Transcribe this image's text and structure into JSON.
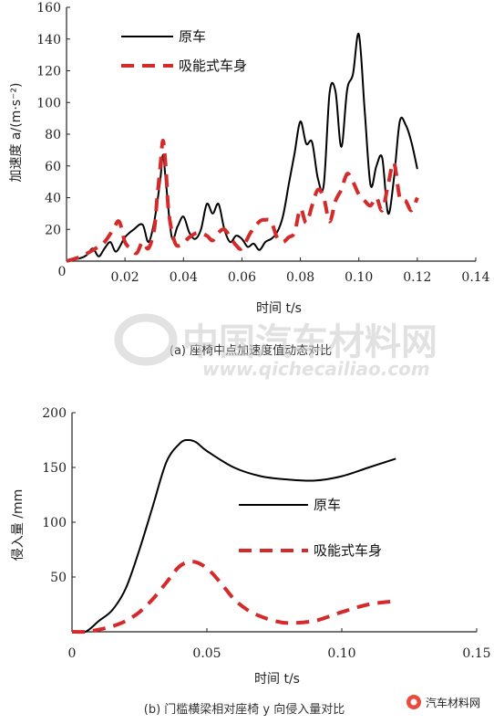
{
  "chart_data": [
    {
      "type": "line",
      "caption": "(a) 座椅中点加速度值动态对比",
      "ylabel": "加速度 a/(m·s⁻²)",
      "xlabel": "时间 t/s",
      "xlim": [
        0,
        0.14
      ],
      "ylim": [
        0,
        160
      ],
      "xticks": [
        "0.02",
        "0.04",
        "0.06",
        "0.08",
        "0.10",
        "0.12",
        "0.14"
      ],
      "yticks": [
        "20",
        "40",
        "60",
        "80",
        "100",
        "120",
        "140",
        "160"
      ],
      "legend_position": "top-left",
      "series": [
        {
          "name": "原车",
          "style": "solid",
          "color": "#000000",
          "x": [
            0,
            0.005,
            0.007,
            0.009,
            0.011,
            0.013,
            0.015,
            0.017,
            0.02,
            0.023,
            0.026,
            0.028,
            0.03,
            0.032,
            0.033,
            0.034,
            0.036,
            0.038,
            0.04,
            0.042,
            0.044,
            0.046,
            0.048,
            0.05,
            0.052,
            0.054,
            0.056,
            0.058,
            0.06,
            0.062,
            0.064,
            0.066,
            0.068,
            0.07,
            0.072,
            0.074,
            0.076,
            0.078,
            0.08,
            0.082,
            0.084,
            0.086,
            0.088,
            0.09,
            0.092,
            0.094,
            0.096,
            0.098,
            0.1,
            0.102,
            0.104,
            0.106,
            0.108,
            0.11,
            0.112,
            0.114,
            0.116,
            0.118,
            0.12
          ],
          "y": [
            0,
            2,
            4,
            8,
            3,
            8,
            12,
            6,
            15,
            20,
            23,
            12,
            25,
            50,
            67,
            50,
            15,
            22,
            28,
            18,
            14,
            20,
            36,
            30,
            36,
            20,
            12,
            16,
            14,
            9,
            11,
            7,
            12,
            14,
            18,
            28,
            48,
            68,
            88,
            74,
            75,
            52,
            48,
            106,
            107,
            72,
            108,
            118,
            143,
            95,
            48,
            60,
            65,
            30,
            52,
            88,
            86,
            75,
            58
          ]
        },
        {
          "name": "吸能式车身",
          "style": "dashed",
          "color": "#d42a2a",
          "x": [
            0,
            0.005,
            0.01,
            0.013,
            0.016,
            0.018,
            0.02,
            0.022,
            0.024,
            0.026,
            0.028,
            0.03,
            0.031,
            0.032,
            0.033,
            0.034,
            0.035,
            0.037,
            0.039,
            0.042,
            0.045,
            0.048,
            0.05,
            0.052,
            0.054,
            0.056,
            0.058,
            0.06,
            0.063,
            0.066,
            0.068,
            0.07,
            0.072,
            0.074,
            0.076,
            0.078,
            0.08,
            0.082,
            0.084,
            0.086,
            0.088,
            0.09,
            0.092,
            0.094,
            0.096,
            0.098,
            0.1,
            0.102,
            0.104,
            0.106,
            0.108,
            0.11,
            0.112,
            0.114,
            0.116,
            0.118,
            0.12
          ],
          "y": [
            0,
            3,
            8,
            12,
            20,
            25,
            12,
            8,
            5,
            12,
            8,
            20,
            40,
            58,
            76,
            58,
            30,
            12,
            10,
            15,
            18,
            16,
            13,
            18,
            20,
            15,
            10,
            8,
            18,
            25,
            26,
            25,
            15,
            12,
            15,
            18,
            33,
            24,
            35,
            45,
            40,
            25,
            38,
            45,
            55,
            50,
            42,
            38,
            35,
            40,
            32,
            48,
            62,
            40,
            38,
            32,
            40
          ]
        }
      ]
    },
    {
      "type": "line",
      "caption": "(b) 门槛横梁相对座椅 y 向侵入量对比",
      "ylabel": "侵入量 /mm",
      "xlabel": "时间 t/s",
      "xlim": [
        0,
        0.15
      ],
      "ylim": [
        0,
        200
      ],
      "xticks": [
        "0",
        "0.05",
        "0.10",
        "0.15"
      ],
      "yticks": [
        "50",
        "100",
        "150",
        "200"
      ],
      "legend_position": "right",
      "series": [
        {
          "name": "原车",
          "style": "solid",
          "color": "#000000",
          "x": [
            0,
            0.005,
            0.01,
            0.015,
            0.02,
            0.025,
            0.03,
            0.035,
            0.04,
            0.043,
            0.046,
            0.05,
            0.06,
            0.07,
            0.08,
            0.09,
            0.1,
            0.11,
            0.12
          ],
          "y": [
            0,
            0,
            10,
            20,
            40,
            75,
            115,
            155,
            172,
            175,
            173,
            165,
            150,
            142,
            139,
            138,
            142,
            150,
            158
          ]
        },
        {
          "name": "吸能式车身",
          "style": "dashed",
          "color": "#d42a2a",
          "x": [
            0,
            0.005,
            0.01,
            0.015,
            0.02,
            0.025,
            0.03,
            0.035,
            0.04,
            0.045,
            0.05,
            0.055,
            0.06,
            0.065,
            0.07,
            0.075,
            0.08,
            0.09,
            0.1,
            0.11,
            0.12
          ],
          "y": [
            0,
            0,
            2,
            5,
            10,
            18,
            30,
            45,
            60,
            64,
            58,
            45,
            30,
            20,
            14,
            10,
            8,
            10,
            18,
            25,
            28
          ]
        }
      ]
    }
  ],
  "watermark": {
    "cn": "中国汽车材料网",
    "url": "www.qichecailiao.com"
  },
  "brand": {
    "label": "汽车材料网"
  }
}
